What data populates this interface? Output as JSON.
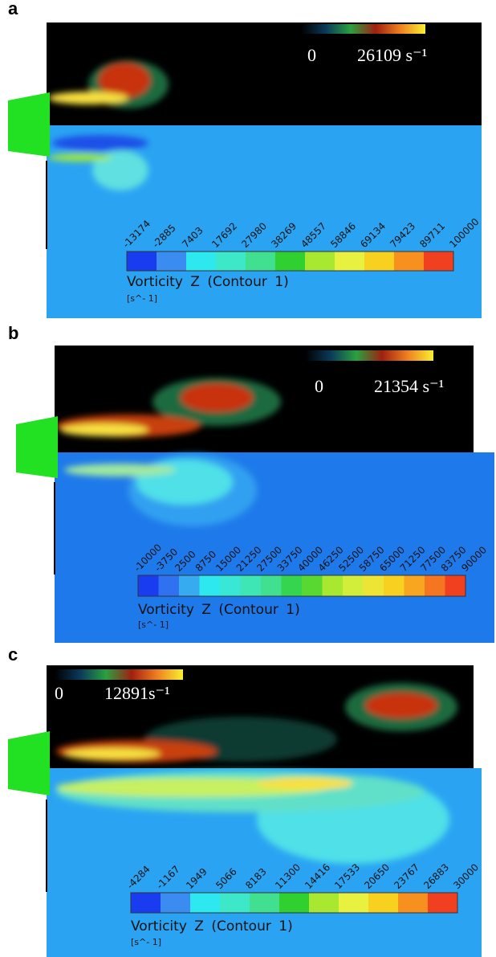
{
  "panels": [
    {
      "label": "a",
      "scale_min": "0",
      "scale_max": "26109 s⁻¹",
      "contour_ticks": [
        "-13174",
        "-2885",
        "7403",
        "17692",
        "27980",
        "38269",
        "48557",
        "58846",
        "69134",
        "79423",
        "89711",
        "100000"
      ],
      "colorbar_title": "Vorticity Z (Contour 1)",
      "colorbar_unit": "[s^- 1]"
    },
    {
      "label": "b",
      "scale_min": "0",
      "scale_max": "21354 s⁻¹",
      "contour_ticks": [
        "-10000",
        "-3750",
        "2500",
        "8750",
        "15000",
        "21250",
        "27500",
        "33750",
        "40000",
        "46250",
        "52500",
        "58750",
        "65000",
        "71250",
        "77500",
        "83750",
        "90000"
      ],
      "colorbar_title": "Vorticity Z (Contour 1)",
      "colorbar_unit": "[s^- 1]"
    },
    {
      "label": "c",
      "scale_min": "0",
      "scale_max": "12891s⁻¹",
      "contour_ticks": [
        "-4284",
        "-1167",
        "1949",
        "5066",
        "8183",
        "11300",
        "14416",
        "17533",
        "20650",
        "23767",
        "26883",
        "30000"
      ],
      "colorbar_title": "Vorticity Z (Contour 1)",
      "colorbar_unit": "[s^- 1]"
    }
  ]
}
